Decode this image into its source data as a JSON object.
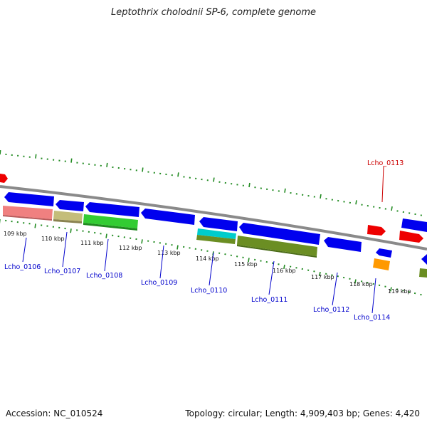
{
  "title": "Leptothrix cholodnii SP-6, complete genome",
  "footer": {
    "accession": "Accession: NC_010524",
    "topology": "Topology: circular; Length: 4,909,403 bp; Genes: 4,420"
  },
  "colors": {
    "backbone": "#888888",
    "tick": "#228B22",
    "gene_label": "#0000cc",
    "gene_label_highlight": "#cc0000",
    "blue_gene": "#0000ee",
    "red_gene": "#ee0000"
  },
  "scale_labels": [
    "109 kbp",
    "110 kbp",
    "111 kbp",
    "112 kbp",
    "113 kbp",
    "114 kbp",
    "115 kbp",
    "116 kbp",
    "117 kbp",
    "118 kbp",
    "119 kbp"
  ],
  "gene_labels": [
    "Lcho_0106",
    "Lcho_0107",
    "Lcho_0108",
    "Lcho_0109",
    "Lcho_0110",
    "Lcho_0111",
    "Lcho_0112",
    "Lcho_0113",
    "Lcho_0114"
  ]
}
